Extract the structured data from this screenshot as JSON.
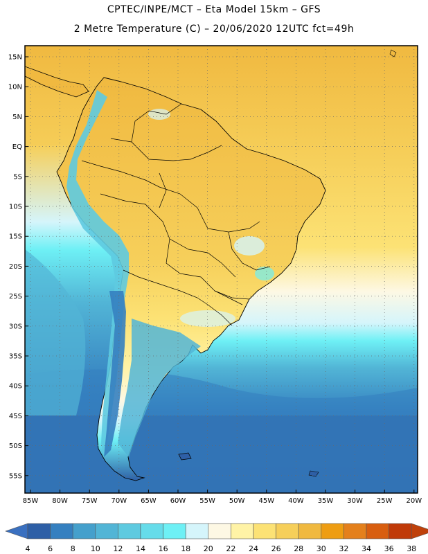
{
  "title_line1": "CPTEC/INPE/MCT –  Eta Model 15km – GFS",
  "title_line2": "2 Metre Temperature (C) – 20/06/2020 12UTC fct=49h",
  "lat_labels": [
    "15N",
    "10N",
    "5N",
    "EQ",
    "5S",
    "10S",
    "15S",
    "20S",
    "25S",
    "30S",
    "35S",
    "40S",
    "45S",
    "50S",
    "55S"
  ],
  "lon_labels": [
    "85W",
    "80W",
    "75W",
    "70W",
    "65W",
    "60W",
    "55W",
    "50W",
    "45W",
    "40W",
    "35W",
    "30W",
    "25W",
    "20W"
  ],
  "colorbar": {
    "labels": [
      "4",
      "6",
      "8",
      "10",
      "12",
      "14",
      "16",
      "18",
      "20",
      "22",
      "24",
      "26",
      "28",
      "30",
      "32",
      "34",
      "36",
      "38"
    ],
    "colors": [
      "#2e5fa6",
      "#3580c0",
      "#45a0cc",
      "#52b5d6",
      "#5ecae0",
      "#66dcea",
      "#6ef0f5",
      "#d5f5fb",
      "#fdf8e4",
      "#fff3a6",
      "#fce275",
      "#f6cf5a",
      "#f0b940",
      "#ee9d12",
      "#e4801c",
      "#d85e10",
      "#c03a08"
    ],
    "below_color": "#3a70c0",
    "above_color": "#bf400a"
  },
  "palette": {
    "ocean_far": "#2e5fa6",
    "ocean_mid": "#45a0cc",
    "ocean_near": "#5ecae0",
    "land_hot": "#f0b940",
    "land_warm": "#fce275",
    "andes_cold": "#6ef0f5",
    "coastline": "#000000"
  }
}
